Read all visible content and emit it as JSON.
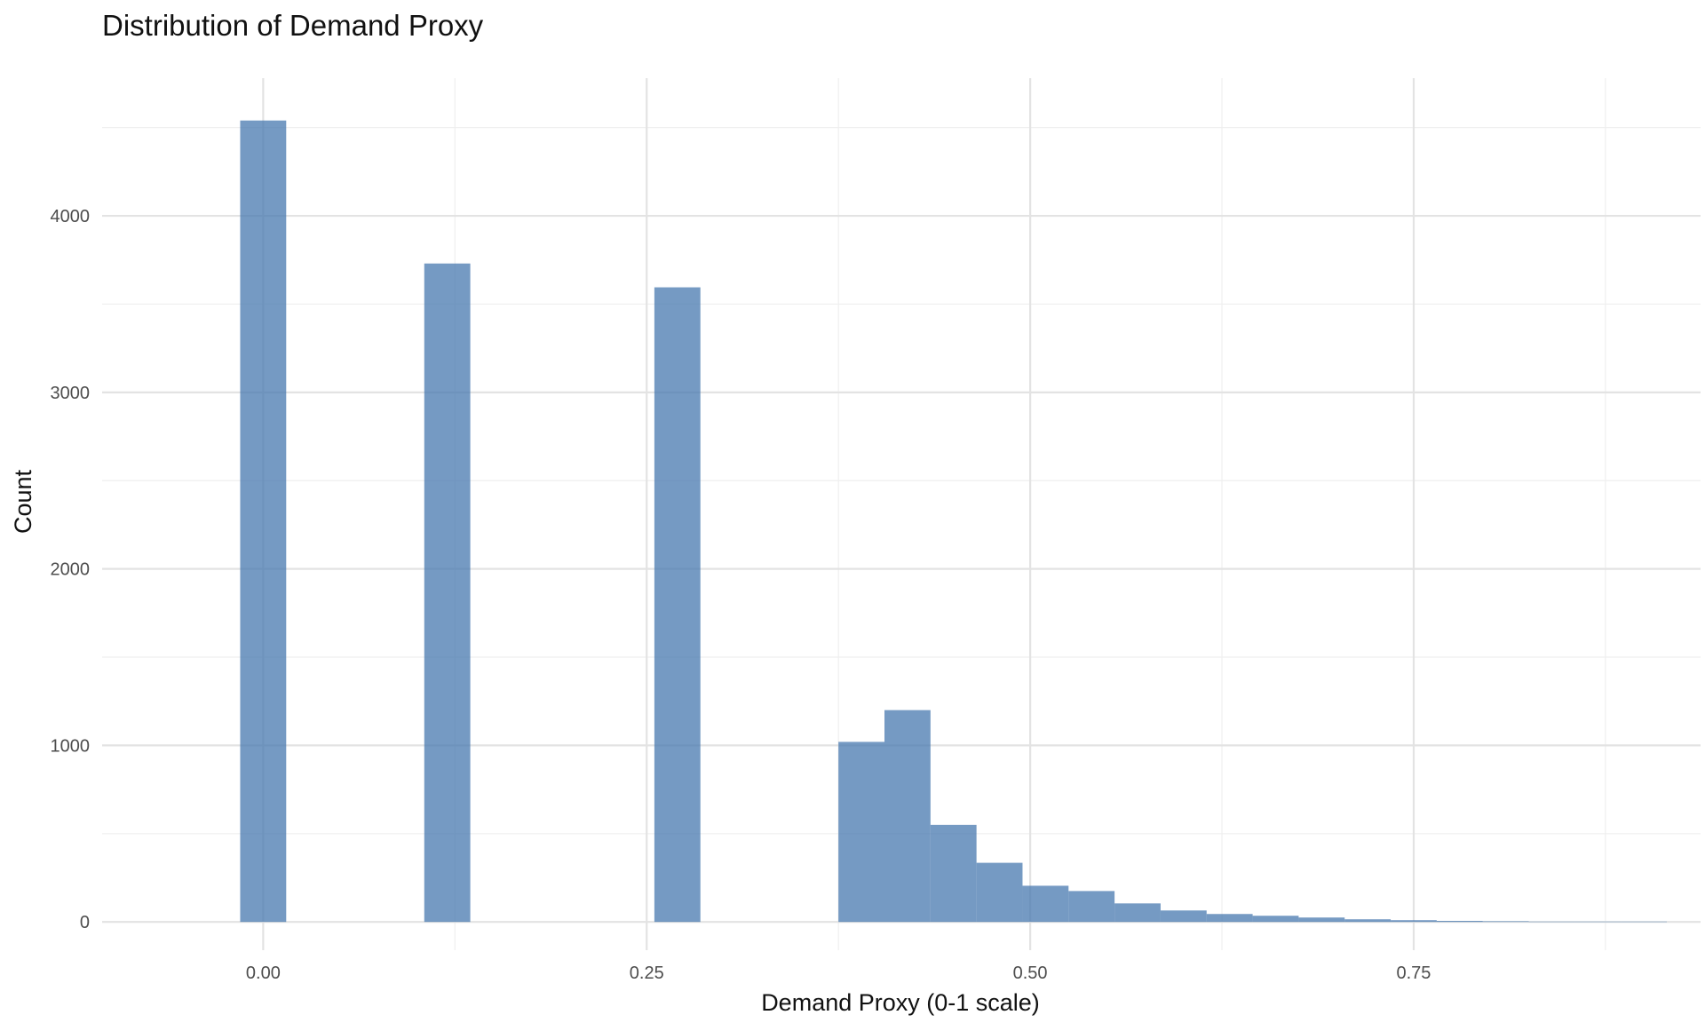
{
  "chart_data": {
    "type": "bar",
    "title": "Distribution of Demand Proxy",
    "xlabel": "Demand Proxy (0-1 scale)",
    "ylabel": "Count",
    "xlim": [
      -0.105,
      0.937
    ],
    "ylim": [
      -160,
      4780
    ],
    "x_ticks": [
      0.0,
      0.25,
      0.5,
      0.75
    ],
    "x_tick_labels": [
      "0.00",
      "0.25",
      "0.50",
      "0.75"
    ],
    "x_minor_ticks": [
      0.125,
      0.375,
      0.625,
      0.875
    ],
    "y_ticks": [
      0,
      1000,
      2000,
      3000,
      4000
    ],
    "y_tick_labels": [
      "0",
      "1000",
      "2000",
      "3000",
      "4000"
    ],
    "y_minor_ticks": [
      500,
      1500,
      2500,
      3500,
      4500
    ],
    "bin_width": 0.03,
    "bins": [
      {
        "x0": -0.015,
        "x1": 0.015,
        "count": 4540
      },
      {
        "x0": 0.105,
        "x1": 0.135,
        "count": 3730
      },
      {
        "x0": 0.255,
        "x1": 0.285,
        "count": 3595
      },
      {
        "x0": 0.375,
        "x1": 0.405,
        "count": 1020
      },
      {
        "x0": 0.405,
        "x1": 0.435,
        "count": 1200
      },
      {
        "x0": 0.435,
        "x1": 0.465,
        "count": 550
      },
      {
        "x0": 0.465,
        "x1": 0.495,
        "count": 335
      },
      {
        "x0": 0.495,
        "x1": 0.525,
        "count": 205
      },
      {
        "x0": 0.525,
        "x1": 0.555,
        "count": 175
      },
      {
        "x0": 0.555,
        "x1": 0.585,
        "count": 105
      },
      {
        "x0": 0.585,
        "x1": 0.615,
        "count": 65
      },
      {
        "x0": 0.615,
        "x1": 0.645,
        "count": 45
      },
      {
        "x0": 0.645,
        "x1": 0.675,
        "count": 35
      },
      {
        "x0": 0.675,
        "x1": 0.705,
        "count": 25
      },
      {
        "x0": 0.705,
        "x1": 0.735,
        "count": 15
      },
      {
        "x0": 0.735,
        "x1": 0.765,
        "count": 10
      },
      {
        "x0": 0.765,
        "x1": 0.795,
        "count": 6
      },
      {
        "x0": 0.795,
        "x1": 0.825,
        "count": 4
      },
      {
        "x0": 0.825,
        "x1": 0.855,
        "count": 2
      },
      {
        "x0": 0.855,
        "x1": 0.885,
        "count": 2
      },
      {
        "x0": 0.885,
        "x1": 0.915,
        "count": 2
      }
    ],
    "bar_color": "#4a7ab0",
    "bar_opacity": 0.76,
    "grid": true,
    "legend": "none"
  }
}
